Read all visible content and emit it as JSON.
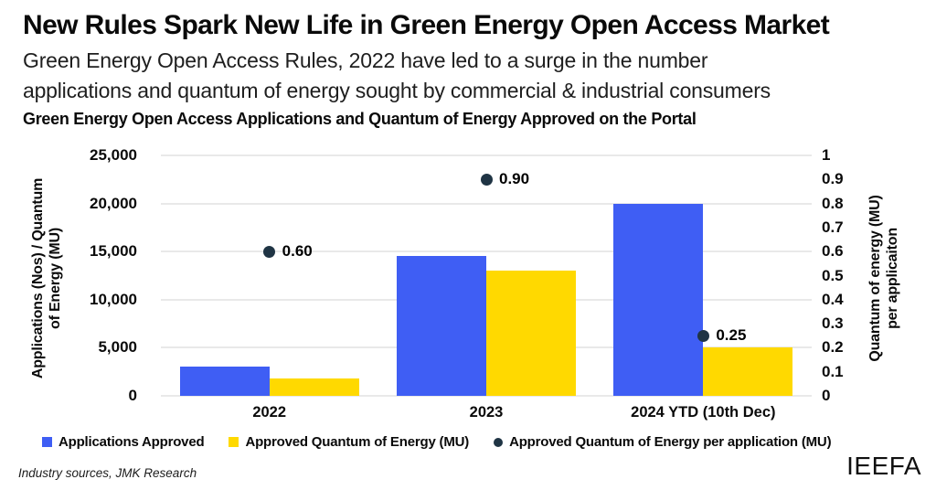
{
  "header": {
    "title": "New Rules Spark New Life in Green Energy Open Access Market",
    "subtitle_lines": [
      "Green Energy Open Access Rules, 2022 have led to a surge in the number",
      "applications and quantum of energy sought by commercial & industrial consumers"
    ]
  },
  "chart_data": {
    "type": "bar",
    "title": "Green Energy Open Access Applications and Quantum of Energy Approved on the Portal",
    "categories": [
      "2022",
      "2023",
      "2024 YTD (10th Dec)"
    ],
    "series": [
      {
        "name": "Applications Approved",
        "mark": "bar",
        "axis": "left",
        "color": "#3F5EF4",
        "values": [
          3000,
          14500,
          20000
        ]
      },
      {
        "name": "Approved Quantum of Energy (MU)",
        "mark": "bar",
        "axis": "left",
        "color": "#FFD900",
        "values": [
          1800,
          13000,
          5000
        ]
      },
      {
        "name": "Approved Quantum of Energy per application (MU)",
        "mark": "point",
        "axis": "right",
        "color": "#1F3444",
        "values": [
          0.6,
          0.9,
          0.25
        ],
        "point_labels": [
          "0.60",
          "0.90",
          "0.25"
        ]
      }
    ],
    "left_axis": {
      "label_lines": [
        "Applications (Nos) / Quantum",
        "of Energy (MU)"
      ],
      "min": 0,
      "max": 25000,
      "ticks": [
        {
          "value": 25000,
          "label": "25,000"
        },
        {
          "value": 20000,
          "label": "20,000"
        },
        {
          "value": 15000,
          "label": "15,000"
        },
        {
          "value": 10000,
          "label": "10,000"
        },
        {
          "value": 5000,
          "label": "5,000"
        },
        {
          "value": 0,
          "label": "0"
        }
      ]
    },
    "right_axis": {
      "label_lines": [
        "Quantum of energy (MU)",
        "per applicaiton"
      ],
      "min": 0,
      "max": 1,
      "ticks": [
        {
          "value": 1,
          "label": "1"
        },
        {
          "value": 0.9,
          "label": "0.9"
        },
        {
          "value": 0.8,
          "label": "0.8"
        },
        {
          "value": 0.7,
          "label": "0.7"
        },
        {
          "value": 0.6,
          "label": "0.6"
        },
        {
          "value": 0.5,
          "label": "0.5"
        },
        {
          "value": 0.4,
          "label": "0.4"
        },
        {
          "value": 0.3,
          "label": "0.3"
        },
        {
          "value": 0.2,
          "label": "0.2"
        },
        {
          "value": 0.1,
          "label": "0.1"
        },
        {
          "value": 0,
          "label": "0"
        }
      ]
    },
    "grid": "horizontal",
    "legend_position": "bottom"
  },
  "footer": {
    "source": "Industry sources, JMK Research",
    "brand": "IEEFA"
  }
}
